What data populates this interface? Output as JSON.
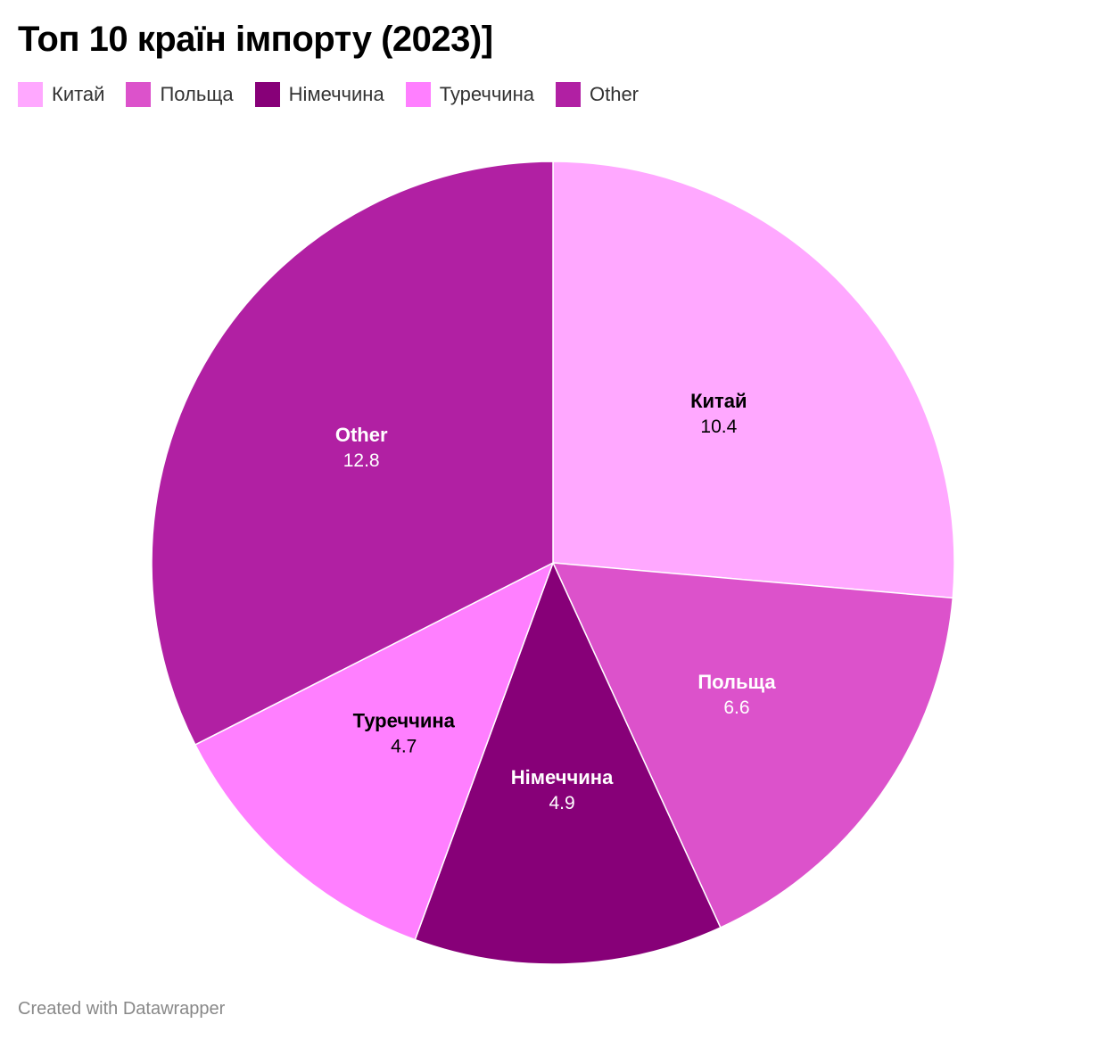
{
  "chart_data": {
    "type": "pie",
    "title": "Топ 10 країн імпорту (2023)]",
    "legend_position": "top-left",
    "slices": [
      {
        "label": "Китай",
        "value": 10.4,
        "color": "#ffa8ff",
        "text_color": "#000000"
      },
      {
        "label": "Польща",
        "value": 6.6,
        "color": "#dc52cb",
        "text_color": "#ffffff"
      },
      {
        "label": "Німеччина",
        "value": 4.9,
        "color": "#870078",
        "text_color": "#ffffff"
      },
      {
        "label": "Туреччина",
        "value": 4.7,
        "color": "#ff7fff",
        "text_color": "#000000"
      },
      {
        "label": "Other",
        "value": 12.8,
        "color": "#b120a3",
        "text_color": "#ffffff"
      }
    ]
  },
  "footer": "Created with Datawrapper"
}
